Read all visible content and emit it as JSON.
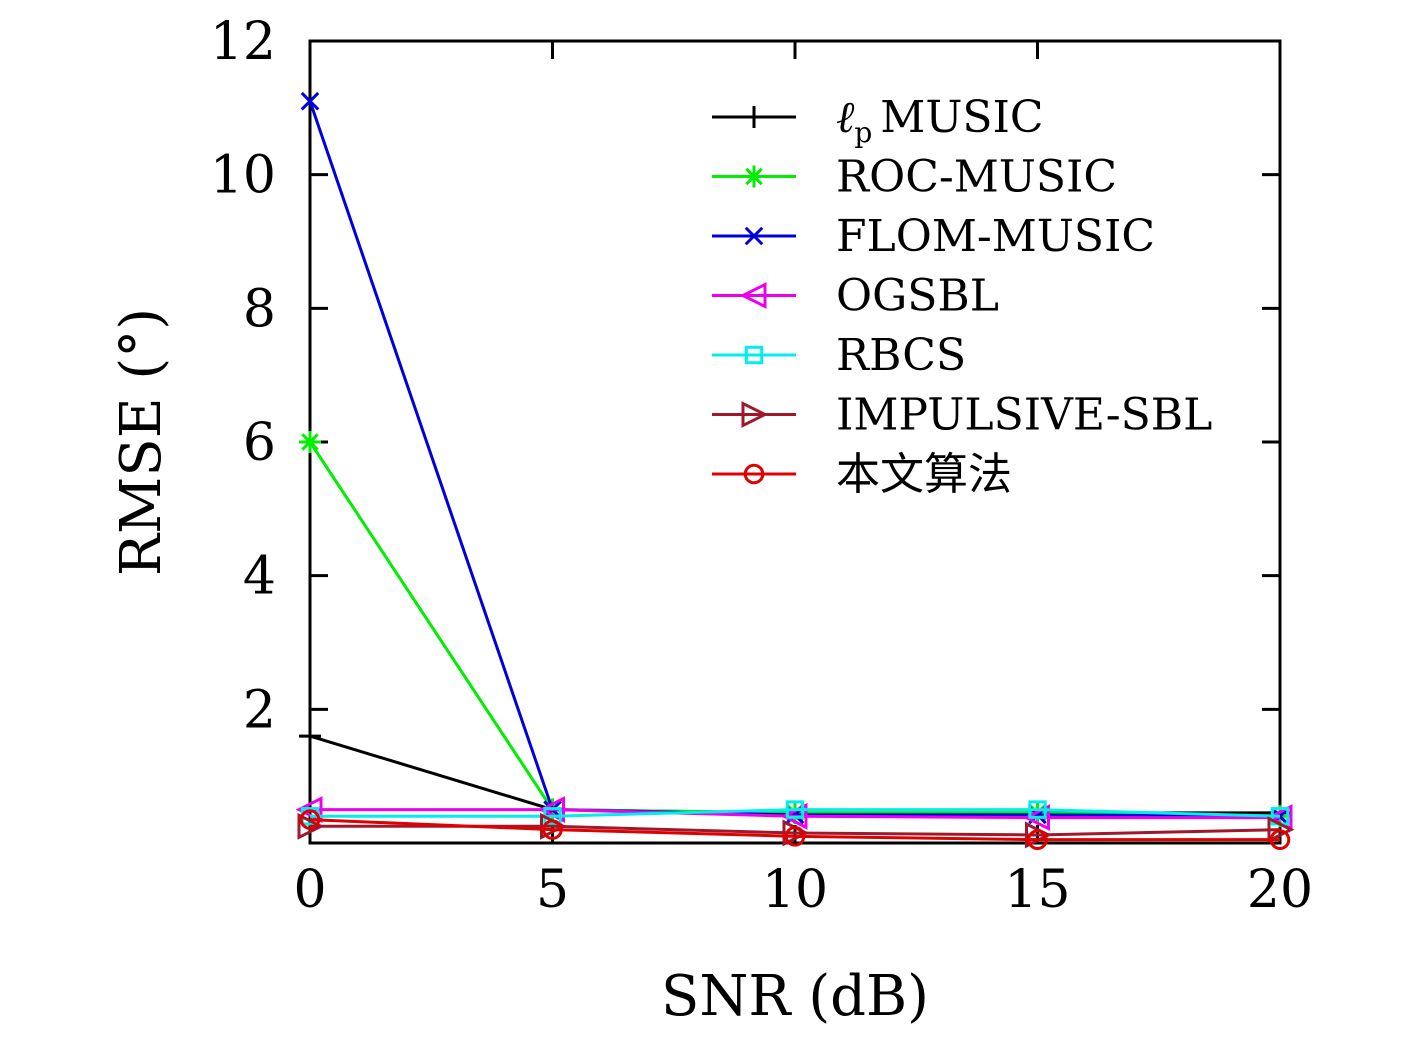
{
  "chart_data": {
    "type": "line",
    "title": "",
    "xlabel": "SNR (dB)",
    "ylabel": "RMSE (°)",
    "xlim": [
      0,
      20
    ],
    "ylim": [
      0,
      12
    ],
    "xticks": [
      "0",
      "5",
      "10",
      "15",
      "20"
    ],
    "yticks": [
      "2",
      "4",
      "6",
      "8",
      "10",
      "12"
    ],
    "legend_position": "top-right",
    "grid": false,
    "x": [
      0,
      5,
      10,
      15,
      20
    ],
    "series": [
      {
        "name": "ℓp MUSIC",
        "legend_base": "ℓ",
        "legend_sub": "p",
        "legend_rest": "MUSIC",
        "color": "#000000",
        "marker": "plus",
        "values": [
          1.6,
          0.5,
          0.45,
          0.45,
          0.45
        ]
      },
      {
        "name": "ROC-MUSIC",
        "color": "#00ee00",
        "marker": "star",
        "values": [
          6.0,
          0.5,
          0.45,
          0.45,
          0.4
        ]
      },
      {
        "name": "FLOM-MUSIC",
        "color": "#0000dd",
        "marker": "x",
        "values": [
          11.1,
          0.5,
          0.42,
          0.42,
          0.4
        ]
      },
      {
        "name": "OGSBL",
        "color": "#ee00ee",
        "marker": "triangle-left",
        "values": [
          0.5,
          0.5,
          0.4,
          0.38,
          0.38
        ]
      },
      {
        "name": "RBCS",
        "color": "#00eeee",
        "marker": "square",
        "values": [
          0.4,
          0.4,
          0.5,
          0.5,
          0.4
        ]
      },
      {
        "name": "IMPULSIVE-SBL",
        "color": "#a0182a",
        "marker": "triangle-right",
        "values": [
          0.25,
          0.25,
          0.15,
          0.12,
          0.2
        ]
      },
      {
        "name": "本文算法",
        "color": "#e00000",
        "marker": "circle",
        "values": [
          0.35,
          0.2,
          0.1,
          0.05,
          0.05
        ]
      }
    ]
  }
}
